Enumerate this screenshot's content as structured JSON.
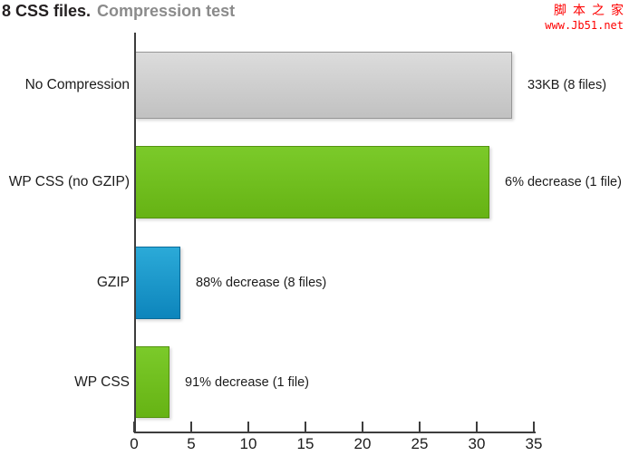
{
  "title": {
    "prefix": "8 CSS files.",
    "rest": "Compression test"
  },
  "watermark": {
    "line1": "脚本之家",
    "line2": "www.Jb51.net",
    "color": "#fe0000"
  },
  "chart_data": {
    "type": "bar",
    "orientation": "horizontal",
    "title": "8 CSS files. Compression test",
    "categories": [
      "No Compression",
      "WP CSS (no GZIP)",
      "GZIP",
      "WP CSS"
    ],
    "values": [
      33,
      31,
      4,
      3
    ],
    "value_labels": [
      "33KB (8 files)",
      "6% decrease (1 file)",
      "88% decrease (8 files)",
      "91% decrease (1 file)"
    ],
    "bar_colors": [
      "gray",
      "green",
      "blue",
      "green"
    ],
    "bar_color_hex": {
      "gray": "#cccccc",
      "green": "#6fc01c",
      "blue": "#1897c9"
    },
    "x_ticks": [
      0,
      5,
      10,
      15,
      20,
      25,
      30,
      35
    ],
    "xlim": [
      0,
      35
    ],
    "xlabel": "",
    "ylabel": "",
    "grid": false,
    "legend": false
  }
}
